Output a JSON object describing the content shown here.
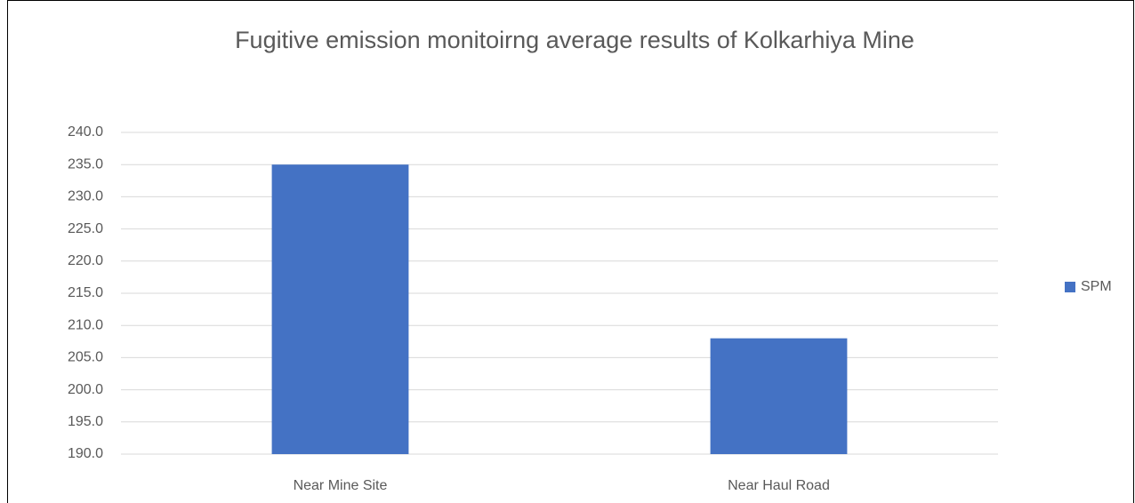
{
  "chart_data": {
    "type": "bar",
    "title": "Fugitive emission monitoirng average results of Kolkarhiya Mine",
    "categories": [
      "Near Mine Site",
      "Near Haul Road"
    ],
    "series": [
      {
        "name": "SPM",
        "color": "#4472c4",
        "values": [
          235.0,
          208.0
        ]
      }
    ],
    "ylim": [
      190,
      240
    ],
    "yticks": [
      {
        "value": 190,
        "label": "190.0"
      },
      {
        "value": 195,
        "label": "195.0"
      },
      {
        "value": 200,
        "label": "200.0"
      },
      {
        "value": 205,
        "label": "205.0"
      },
      {
        "value": 210,
        "label": "210.0"
      },
      {
        "value": 215,
        "label": "215.0"
      },
      {
        "value": 220,
        "label": "220.0"
      },
      {
        "value": 225,
        "label": "225.0"
      },
      {
        "value": 230,
        "label": "230.0"
      },
      {
        "value": 235,
        "label": "235.0"
      },
      {
        "value": 240,
        "label": "240.0"
      }
    ],
    "grid": true,
    "legend": "right"
  }
}
